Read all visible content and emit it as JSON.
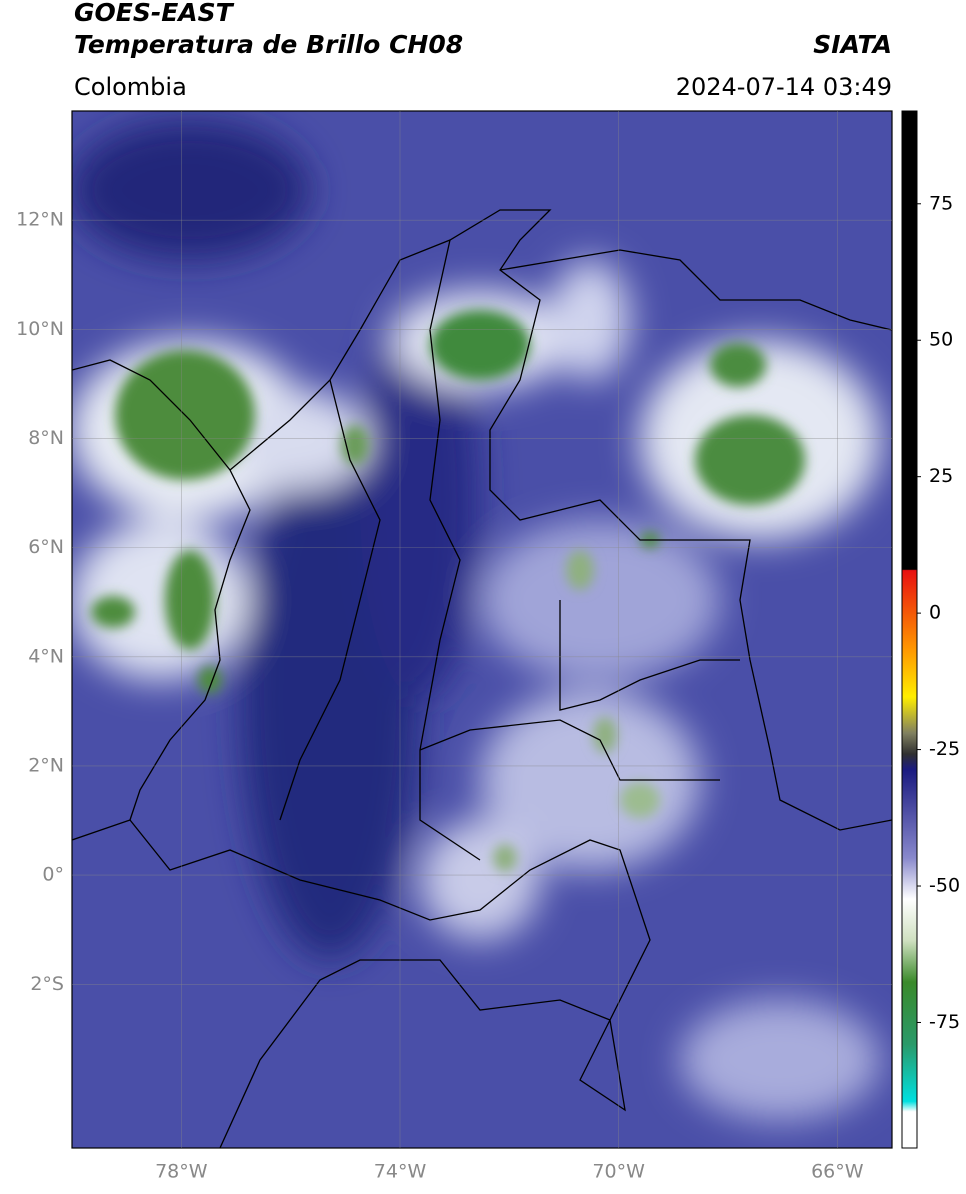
{
  "header": {
    "title": "GOES-EAST",
    "subtitle": "Temperatura de Brillo CH08",
    "agency": "SIATA",
    "region": "Colombia",
    "datetime": "2024-07-14 03:49"
  },
  "map": {
    "lonlim": [
      -80,
      -65
    ],
    "latlim": [
      -5,
      14
    ],
    "lonticks": [
      {
        "value": -78,
        "label": "78°W"
      },
      {
        "value": -74,
        "label": "74°W"
      },
      {
        "value": -70,
        "label": "70°W"
      },
      {
        "value": -66,
        "label": "66°W"
      }
    ],
    "latticks": [
      {
        "value": 12,
        "label": "12°N"
      },
      {
        "value": 10,
        "label": "10°N"
      },
      {
        "value": 8,
        "label": "8°N"
      },
      {
        "value": 6,
        "label": "6°N"
      },
      {
        "value": 4,
        "label": "4°N"
      },
      {
        "value": 2,
        "label": "2°N"
      },
      {
        "value": 0,
        "label": "0°"
      },
      {
        "value": -2,
        "label": "2°S"
      }
    ],
    "grid": true
  },
  "colorbar": {
    "lim": [
      -98,
      92
    ],
    "ticks": [
      75,
      50,
      25,
      0,
      -25,
      -50,
      -75
    ]
  }
}
